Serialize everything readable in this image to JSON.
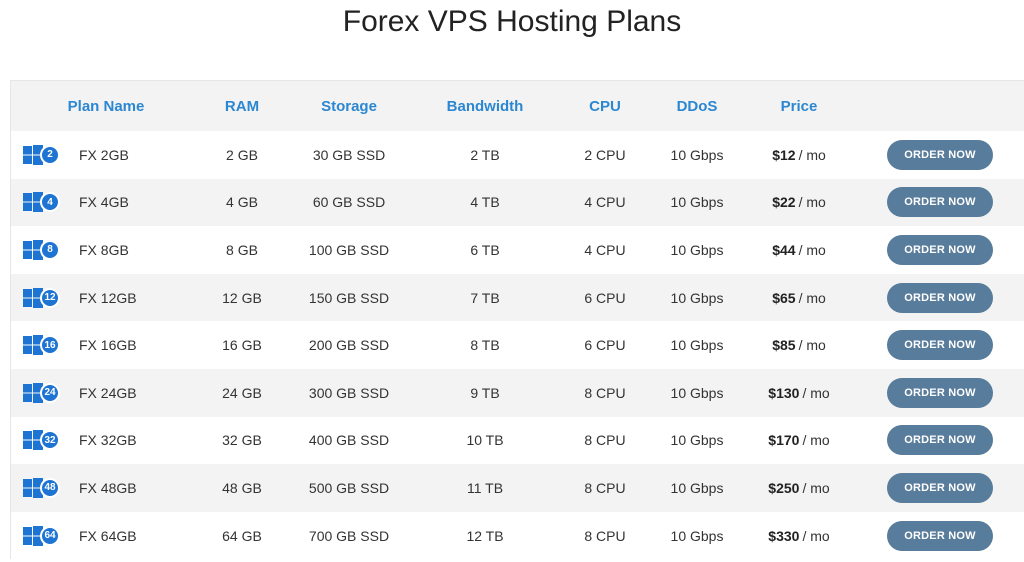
{
  "page": {
    "title": "Forex VPS Hosting Plans"
  },
  "table": {
    "headers": {
      "plan": "Plan Name",
      "ram": "RAM",
      "storage": "Storage",
      "bandwidth": "Bandwidth",
      "cpu": "CPU",
      "ddos": "DDoS",
      "price": "Price"
    },
    "order_label": "ORDER NOW",
    "price_suffix": "/ mo",
    "rows": [
      {
        "badge": "2",
        "name": "FX 2GB",
        "ram": "2 GB",
        "storage": "30 GB SSD",
        "bandwidth": "2 TB",
        "cpu": "2 CPU",
        "ddos": "10 Gbps",
        "price": "$12"
      },
      {
        "badge": "4",
        "name": "FX 4GB",
        "ram": "4 GB",
        "storage": "60 GB SSD",
        "bandwidth": "4 TB",
        "cpu": "4 CPU",
        "ddos": "10 Gbps",
        "price": "$22"
      },
      {
        "badge": "8",
        "name": "FX 8GB",
        "ram": "8 GB",
        "storage": "100 GB SSD",
        "bandwidth": "6 TB",
        "cpu": "4 CPU",
        "ddos": "10 Gbps",
        "price": "$44"
      },
      {
        "badge": "12",
        "name": "FX 12GB",
        "ram": "12 GB",
        "storage": "150 GB SSD",
        "bandwidth": "7 TB",
        "cpu": "6 CPU",
        "ddos": "10 Gbps",
        "price": "$65"
      },
      {
        "badge": "16",
        "name": "FX 16GB",
        "ram": "16 GB",
        "storage": "200 GB SSD",
        "bandwidth": "8 TB",
        "cpu": "6 CPU",
        "ddos": "10 Gbps",
        "price": "$85"
      },
      {
        "badge": "24",
        "name": "FX 24GB",
        "ram": "24 GB",
        "storage": "300 GB SSD",
        "bandwidth": "9 TB",
        "cpu": "8 CPU",
        "ddos": "10 Gbps",
        "price": "$130"
      },
      {
        "badge": "32",
        "name": "FX 32GB",
        "ram": "32 GB",
        "storage": "400 GB SSD",
        "bandwidth": "10 TB",
        "cpu": "8 CPU",
        "ddos": "10 Gbps",
        "price": "$170"
      },
      {
        "badge": "48",
        "name": "FX 48GB",
        "ram": "48 GB",
        "storage": "500 GB SSD",
        "bandwidth": "11 TB",
        "cpu": "8 CPU",
        "ddos": "10 Gbps",
        "price": "$250"
      },
      {
        "badge": "64",
        "name": "FX 64GB",
        "ram": "64 GB",
        "storage": "700 GB SSD",
        "bandwidth": "12 TB",
        "cpu": "8 CPU",
        "ddos": "10 Gbps",
        "price": "$330"
      }
    ]
  },
  "icons": {
    "plan_icon": "windows-logo-icon",
    "badge_color": "#1e74d2",
    "windows_color": "#1e74d2",
    "header_color": "#2b87d1",
    "button_color": "#587c9b"
  }
}
